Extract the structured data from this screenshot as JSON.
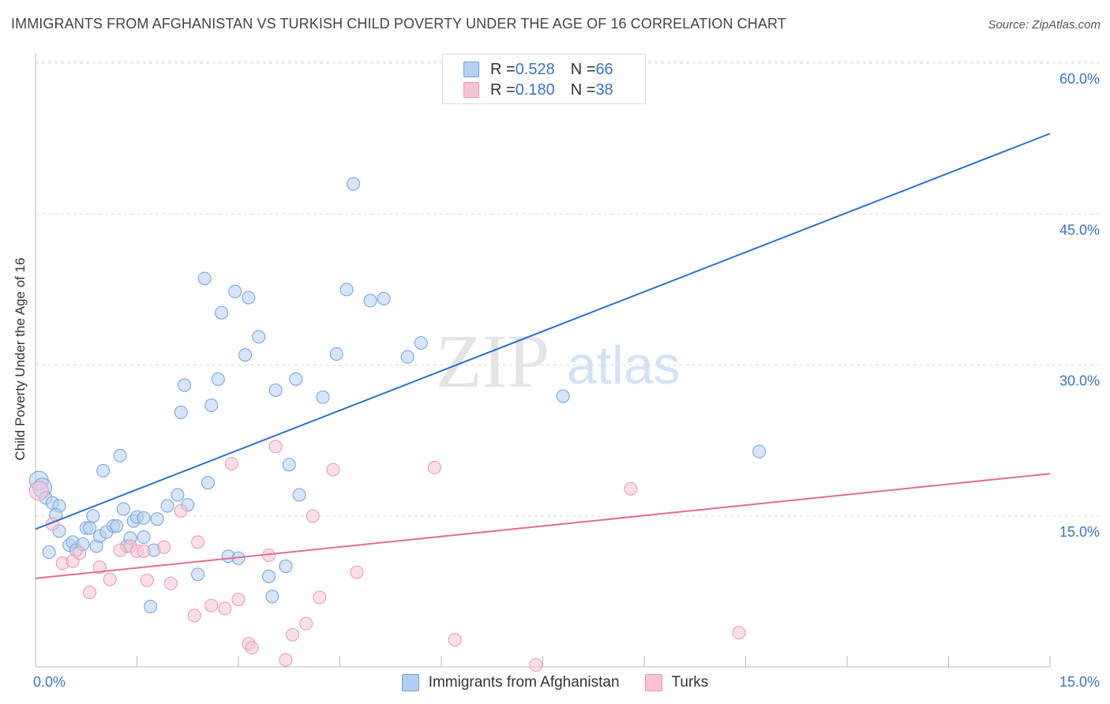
{
  "title": "IMMIGRANTS FROM AFGHANISTAN VS TURKISH CHILD POVERTY UNDER THE AGE OF 16 CORRELATION CHART",
  "source": "Source: ZipAtlas.com",
  "watermark": {
    "zip": "ZIP",
    "atlas": "atlas"
  },
  "legend_top": {
    "rows": [
      {
        "r_label": "R = ",
        "r_value": "0.528",
        "n_label": "N = ",
        "n_value": "66"
      },
      {
        "r_label": "R = ",
        "r_value": "0.180",
        "n_label": "N = ",
        "n_value": "38"
      }
    ]
  },
  "chart_data": {
    "type": "scatter",
    "ylabel": "Child Poverty Under the Age of 16",
    "xlim": [
      0,
      15
    ],
    "ylim": [
      0,
      60
    ],
    "x_tick_labels": [
      "0.0%",
      "15.0%"
    ],
    "y_ticks": [
      15,
      30,
      45,
      60
    ],
    "y_tick_labels": [
      "15.0%",
      "30.0%",
      "45.0%",
      "60.0%"
    ],
    "grid": "horizontal dashed",
    "legend_position": "bottom-center",
    "series": [
      {
        "name": "Immigrants from Afghanistan",
        "color": "#6f9fe0",
        "fill": "#b5cff3",
        "trend_color": "#2f6fcc",
        "trend": [
          [
            0,
            13.7
          ],
          [
            15,
            53.0
          ]
        ],
        "points": [
          [
            0.05,
            18.5
          ],
          [
            0.1,
            17.8
          ],
          [
            0.15,
            16.8
          ],
          [
            0.25,
            16.3
          ],
          [
            0.35,
            16.0
          ],
          [
            0.3,
            15.1
          ],
          [
            0.2,
            11.4
          ],
          [
            0.35,
            13.5
          ],
          [
            0.5,
            12.1
          ],
          [
            0.55,
            12.4
          ],
          [
            0.6,
            11.6
          ],
          [
            0.7,
            12.2
          ],
          [
            0.75,
            13.8
          ],
          [
            0.8,
            13.8
          ],
          [
            0.85,
            15.0
          ],
          [
            0.9,
            12.0
          ],
          [
            0.95,
            13.0
          ],
          [
            1.0,
            19.5
          ],
          [
            1.05,
            13.4
          ],
          [
            1.15,
            14.0
          ],
          [
            1.2,
            14.0
          ],
          [
            1.25,
            21.0
          ],
          [
            1.3,
            15.7
          ],
          [
            1.35,
            12.0
          ],
          [
            1.4,
            12.8
          ],
          [
            1.45,
            14.5
          ],
          [
            1.5,
            14.9
          ],
          [
            1.6,
            14.8
          ],
          [
            1.6,
            12.9
          ],
          [
            1.7,
            6.0
          ],
          [
            1.75,
            11.6
          ],
          [
            1.8,
            14.7
          ],
          [
            1.95,
            16.0
          ],
          [
            2.1,
            17.1
          ],
          [
            2.15,
            25.3
          ],
          [
            2.2,
            28.0
          ],
          [
            2.25,
            16.1
          ],
          [
            2.4,
            9.2
          ],
          [
            2.5,
            38.6
          ],
          [
            2.55,
            18.3
          ],
          [
            2.6,
            26.0
          ],
          [
            2.7,
            28.6
          ],
          [
            2.75,
            35.2
          ],
          [
            2.85,
            11.0
          ],
          [
            2.95,
            37.3
          ],
          [
            3.0,
            10.8
          ],
          [
            3.1,
            31.0
          ],
          [
            3.15,
            36.7
          ],
          [
            3.3,
            32.8
          ],
          [
            3.45,
            9.0
          ],
          [
            3.5,
            7.0
          ],
          [
            3.55,
            27.5
          ],
          [
            3.7,
            10.0
          ],
          [
            3.75,
            20.1
          ],
          [
            3.85,
            28.6
          ],
          [
            3.9,
            17.1
          ],
          [
            4.25,
            26.8
          ],
          [
            4.45,
            31.1
          ],
          [
            4.6,
            37.5
          ],
          [
            4.7,
            48.0
          ],
          [
            4.95,
            36.4
          ],
          [
            5.15,
            36.6
          ],
          [
            5.5,
            30.8
          ],
          [
            5.7,
            32.2
          ],
          [
            7.8,
            26.9
          ],
          [
            10.7,
            21.4
          ]
        ]
      },
      {
        "name": "Turks",
        "color": "#e996b0",
        "fill": "#f6c4d3",
        "trend_color": "#e46b95",
        "trend": [
          [
            0,
            8.8
          ],
          [
            15,
            19.2
          ]
        ],
        "points": [
          [
            0.05,
            17.5
          ],
          [
            0.25,
            14.2
          ],
          [
            0.4,
            10.3
          ],
          [
            0.55,
            10.5
          ],
          [
            0.65,
            11.3
          ],
          [
            0.8,
            7.4
          ],
          [
            0.95,
            9.9
          ],
          [
            1.1,
            8.7
          ],
          [
            1.25,
            11.6
          ],
          [
            1.4,
            12.0
          ],
          [
            1.5,
            11.5
          ],
          [
            1.6,
            11.5
          ],
          [
            1.65,
            8.6
          ],
          [
            1.9,
            11.9
          ],
          [
            2.0,
            8.3
          ],
          [
            2.15,
            15.5
          ],
          [
            2.35,
            5.1
          ],
          [
            2.4,
            12.4
          ],
          [
            2.6,
            6.1
          ],
          [
            2.8,
            5.8
          ],
          [
            2.9,
            20.2
          ],
          [
            3.0,
            6.7
          ],
          [
            3.15,
            2.3
          ],
          [
            3.2,
            1.9
          ],
          [
            3.45,
            11.1
          ],
          [
            3.55,
            21.9
          ],
          [
            3.7,
            0.7
          ],
          [
            3.8,
            3.2
          ],
          [
            4.0,
            4.3
          ],
          [
            4.1,
            15.0
          ],
          [
            4.2,
            6.9
          ],
          [
            4.4,
            19.6
          ],
          [
            4.75,
            9.4
          ],
          [
            5.9,
            19.8
          ],
          [
            6.2,
            2.7
          ],
          [
            7.4,
            0.2
          ],
          [
            8.8,
            17.7
          ],
          [
            10.4,
            3.4
          ]
        ]
      }
    ]
  }
}
